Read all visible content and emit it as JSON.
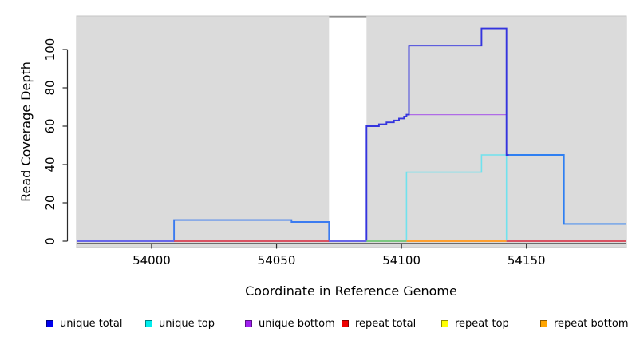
{
  "figure": {
    "xlabel": "Coordinate in Reference Genome",
    "ylabel": "Read Coverage Depth"
  },
  "legend": {
    "items": [
      {
        "label": "unique total",
        "color": "#0000EE"
      },
      {
        "label": "unique top",
        "color": "#00EEEE"
      },
      {
        "label": "unique bottom",
        "color": "#A020F0"
      },
      {
        "label": "repeat total",
        "color": "#EE0000"
      },
      {
        "label": "repeat top",
        "color": "#FFFF00"
      },
      {
        "label": "repeat bottom",
        "color": "#FFA500"
      }
    ]
  },
  "chart_data": {
    "type": "line",
    "step": true,
    "title": "",
    "xlabel": "Coordinate in Reference Genome",
    "ylabel": "Read Coverage Depth",
    "xlim": [
      53970,
      54190
    ],
    "ylim": [
      -3,
      117
    ],
    "x_ticks": [
      54000,
      54050,
      54100,
      54150
    ],
    "y_ticks": [
      0,
      20,
      40,
      60,
      80,
      100
    ],
    "grid": false,
    "legend_position": "bottom",
    "plot_background": "#DBDBDB",
    "plot_border_color": "#C4C4C4",
    "gap_region": {
      "x_start": 54071,
      "x_end": 54086,
      "fill": "#FFFFFF",
      "top_border_color": "#8F8F8F"
    },
    "series": [
      {
        "name": "repeat total",
        "color": "#E04358",
        "points": [
          [
            53970,
            0
          ]
        ]
      },
      {
        "name": "repeat top",
        "color": "#F0F00A",
        "points": [
          [
            53970,
            0
          ]
        ]
      },
      {
        "name": "repeat bottom",
        "color": "#FF9D2E",
        "points": [
          [
            53970,
            0
          ]
        ]
      },
      {
        "name": "unique bottom",
        "color": "#AF6BE6",
        "width": 1.3,
        "points": [
          [
            53970,
            0
          ],
          [
            54086,
            60
          ],
          [
            54091,
            61
          ],
          [
            54094,
            62
          ],
          [
            54097,
            63
          ],
          [
            54099,
            64
          ],
          [
            54101,
            65
          ],
          [
            54102,
            66
          ],
          [
            54142,
            0
          ]
        ]
      },
      {
        "name": "unique top",
        "color": "#6FE2EE",
        "width": 1.6,
        "points": [
          [
            53970,
            0
          ],
          [
            54102,
            36
          ],
          [
            54132,
            45
          ],
          [
            54142,
            0
          ]
        ]
      },
      {
        "name": "unique total",
        "color": "#3434DE",
        "width": 1.9,
        "color_ranges": [
          {
            "from": 53970,
            "to": 54086,
            "color": "#3B7BF0"
          },
          {
            "from": 54086,
            "to": 54143,
            "color": "#3434DE"
          },
          {
            "from": 54143,
            "to": 54190,
            "color": "#2E7FF2"
          }
        ],
        "points": [
          [
            53970,
            0
          ],
          [
            54009,
            11
          ],
          [
            54056,
            10
          ],
          [
            54071,
            0
          ],
          [
            54086,
            60
          ],
          [
            54091,
            61
          ],
          [
            54094,
            62
          ],
          [
            54097,
            63
          ],
          [
            54099,
            64
          ],
          [
            54101,
            65
          ],
          [
            54102,
            66
          ],
          [
            54103,
            102
          ],
          [
            54132,
            111
          ],
          [
            54142,
            45
          ],
          [
            54165,
            9
          ]
        ]
      },
      {
        "name": "baseline overlap segments",
        "type": "baseline_segments",
        "segments": [
          {
            "x_start": 53970,
            "x_end": 54009,
            "color": "#6F62E8"
          },
          {
            "x_start": 54009,
            "x_end": 54071,
            "color": "#E04358"
          },
          {
            "x_start": 54071,
            "x_end": 54086,
            "color": "#6F62E8"
          },
          {
            "x_start": 54086,
            "x_end": 54102,
            "color": "#74C97C"
          },
          {
            "x_start": 54102,
            "x_end": 54142,
            "color": "#FF9D2E"
          },
          {
            "x_start": 54142,
            "x_end": 54190,
            "color": "#E04358"
          }
        ]
      }
    ]
  }
}
